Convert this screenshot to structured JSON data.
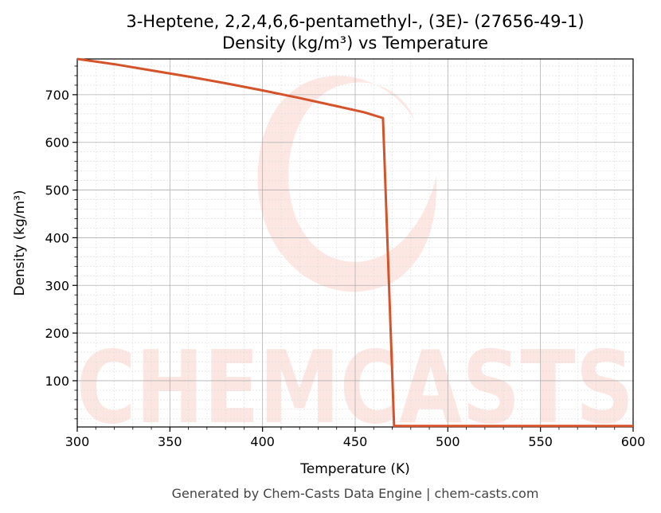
{
  "chart_data": {
    "type": "line",
    "title_line1": "3-Heptene, 2,2,4,6,6-pentamethyl-, (3E)- (27656-49-1)",
    "title_line2": "Density (kg/m³) vs Temperature",
    "xlabel": "Temperature (K)",
    "ylabel": "Density (kg/m³)",
    "xlim": [
      300,
      600
    ],
    "ylim": [
      3,
      775
    ],
    "xticks": [
      300,
      350,
      400,
      450,
      500,
      550,
      600
    ],
    "yticks": [
      100,
      200,
      300,
      400,
      500,
      600,
      700
    ],
    "grid": true,
    "line_color": "#d4532a",
    "series": [
      {
        "x": [
          300,
          320,
          340,
          360,
          380,
          400,
          420,
          440,
          455,
          465,
          471,
          500,
          550,
          600
        ],
        "values": [
          775,
          764,
          751,
          738,
          724,
          709,
          693,
          676,
          663,
          651,
          5,
          5,
          5,
          5
        ]
      }
    ]
  },
  "watermark_text": "CHEMCASTS",
  "footer": "Generated by Chem-Casts Data Engine | chem-casts.com"
}
